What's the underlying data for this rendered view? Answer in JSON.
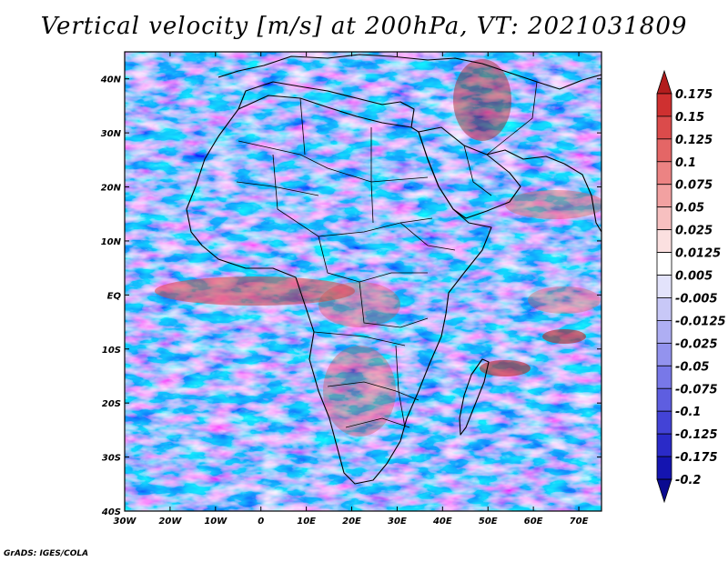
{
  "chart_data": {
    "type": "heatmap",
    "title": "Vertical velocity [m/s] at 200hPa, VT: 2021031809",
    "variable": "Vertical velocity",
    "units": "m/s",
    "level": "200hPa",
    "valid_time": "2021031809",
    "x_ticks": [
      "30W",
      "20W",
      "10W",
      "0",
      "10E",
      "20E",
      "30E",
      "40E",
      "50E",
      "60E",
      "70E"
    ],
    "y_ticks": [
      "40S",
      "30S",
      "20S",
      "10S",
      "EQ",
      "10N",
      "20N",
      "30N",
      "40N"
    ],
    "xlim": [
      -30,
      75
    ],
    "ylim": [
      -40,
      45
    ],
    "colorbar": {
      "labels": [
        "0.175",
        "0.15",
        "0.125",
        "0.1",
        "0.075",
        "0.05",
        "0.025",
        "0.0125",
        "0.005",
        "-0.005",
        "-0.0125",
        "-0.025",
        "-0.05",
        "-0.075",
        "-0.1",
        "-0.125",
        "-0.175",
        "-0.2"
      ],
      "colors": [
        "#b21d1d",
        "#cf3030",
        "#db4b4b",
        "#e46666",
        "#ec8383",
        "#f2a1a1",
        "#f7c0c0",
        "#fbe0e0",
        "#ffffff",
        "#e3e3fb",
        "#c8c8f7",
        "#aeaef3",
        "#9393ee",
        "#7878e8",
        "#5e5ee0",
        "#4343d6",
        "#2a2ac8",
        "#1414b0",
        "#0a0a90"
      ]
    }
  },
  "credit": "GrADS: IGES/COLA"
}
